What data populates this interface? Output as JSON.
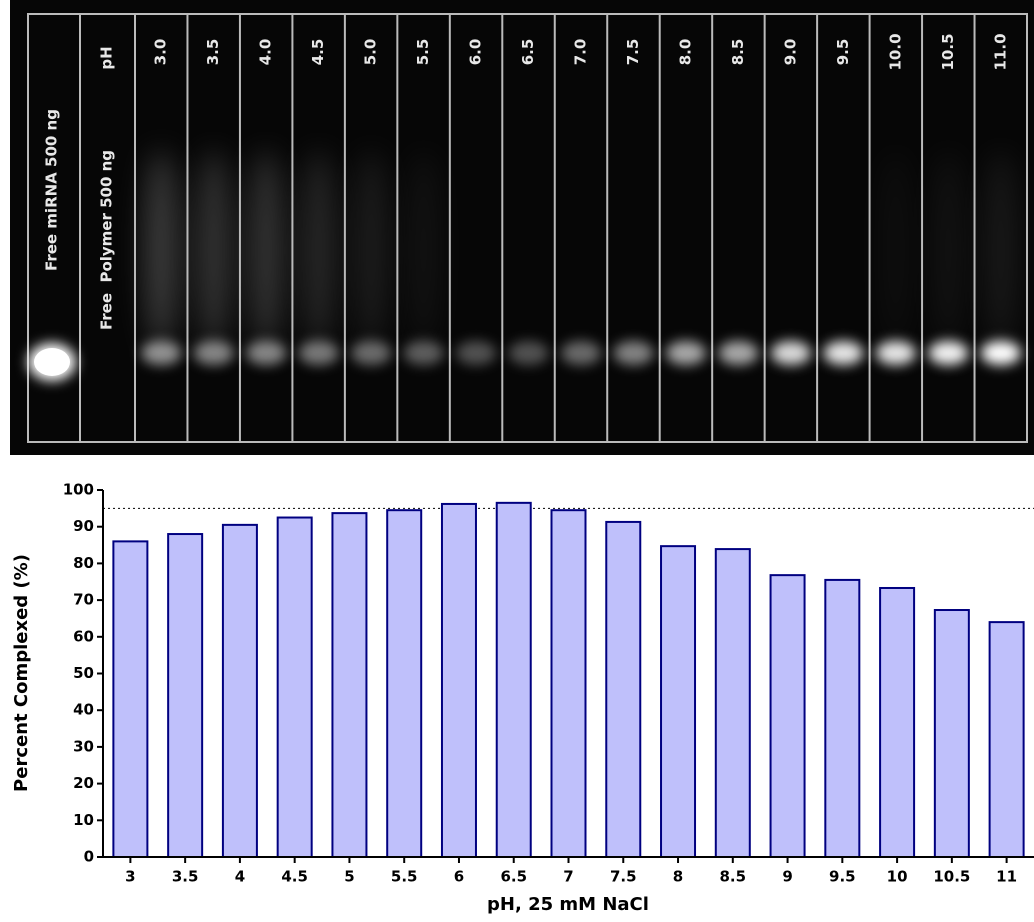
{
  "gel": {
    "left_labels": [
      "Free miRNA 500 ng",
      "Free  Polymer 500 ng"
    ],
    "ph_label": "pH",
    "lanes": [
      "3.0",
      "3.5",
      "4.0",
      "4.5",
      "5.0",
      "5.5",
      "6.0",
      "6.5",
      "7.0",
      "7.5",
      "8.0",
      "8.5",
      "9.0",
      "9.5",
      "10.0",
      "10.5",
      "11.0"
    ]
  },
  "chart_data": {
    "type": "bar",
    "xlabel": "pH, 25 mM NaCl",
    "ylabel": "Percent Complexed (%)",
    "categories": [
      "3",
      "3.5",
      "4",
      "4.5",
      "5",
      "5.5",
      "6",
      "6.5",
      "7",
      "7.5",
      "8",
      "8.5",
      "9",
      "9.5",
      "10",
      "10.5",
      "11"
    ],
    "values": [
      86,
      88,
      90.5,
      92.5,
      93.7,
      94.5,
      96.2,
      96.5,
      94.5,
      91.3,
      84.7,
      83.9,
      76.8,
      75.5,
      73.3,
      67.3,
      64
    ],
    "color": "#bfc0fb",
    "edge_color": "#000080",
    "ylim": [
      0,
      100
    ],
    "yticks": [
      0,
      10,
      20,
      30,
      40,
      50,
      60,
      70,
      80,
      90,
      100
    ],
    "reference_line": 95
  }
}
